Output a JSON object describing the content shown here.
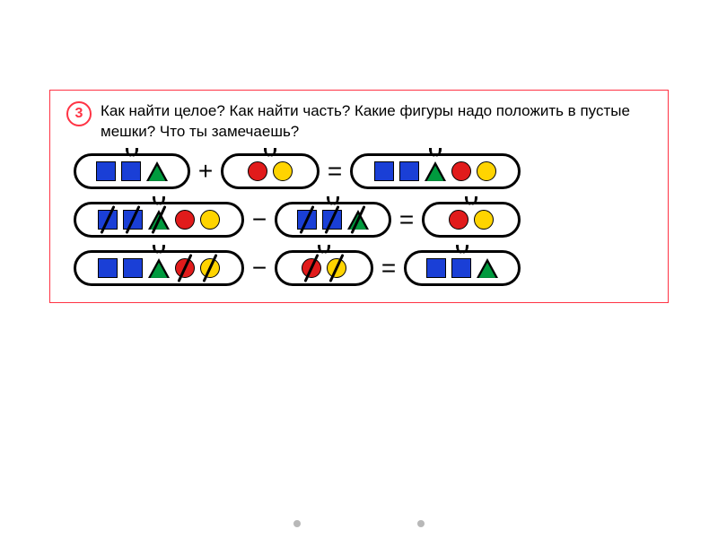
{
  "question_number": "3",
  "question_text": "Как найти целое? Как найти часть? Какие фигуры надо положить в пустые мешки? Что ты замечаешь?",
  "colors": {
    "blue": "#1a3fd6",
    "green": "#009a3e",
    "red": "#e11b1b",
    "yellow": "#ffd400",
    "border": "#ff3344",
    "black": "#000000"
  },
  "layout": {
    "bag_widths": {
      "w3": 130,
      "w2": 110,
      "w5": 190
    }
  },
  "shapes": {
    "square": "square",
    "triangle": "triangle",
    "circle": "circle"
  },
  "rows": [
    {
      "left": {
        "size": "w3",
        "items": [
          {
            "shape": "square",
            "color": "blue"
          },
          {
            "shape": "square",
            "color": "blue"
          },
          {
            "shape": "triangle",
            "color": "green"
          }
        ]
      },
      "op1": "+",
      "mid": {
        "size": "w2",
        "items": [
          {
            "shape": "circle",
            "color": "red"
          },
          {
            "shape": "circle",
            "color": "yellow"
          }
        ]
      },
      "op2": "=",
      "right": {
        "size": "w5",
        "items": [
          {
            "shape": "square",
            "color": "blue"
          },
          {
            "shape": "square",
            "color": "blue"
          },
          {
            "shape": "triangle",
            "color": "green"
          },
          {
            "shape": "circle",
            "color": "red"
          },
          {
            "shape": "circle",
            "color": "yellow"
          }
        ]
      }
    },
    {
      "left": {
        "size": "w5",
        "items": [
          {
            "shape": "square",
            "color": "blue",
            "strike": true
          },
          {
            "shape": "square",
            "color": "blue",
            "strike": true
          },
          {
            "shape": "triangle",
            "color": "green",
            "strike": true
          },
          {
            "shape": "circle",
            "color": "red"
          },
          {
            "shape": "circle",
            "color": "yellow"
          }
        ]
      },
      "op1": "−",
      "mid": {
        "size": "w3",
        "items": [
          {
            "shape": "square",
            "color": "blue",
            "strike": true
          },
          {
            "shape": "square",
            "color": "blue",
            "strike": true
          },
          {
            "shape": "triangle",
            "color": "green",
            "strike": true
          }
        ]
      },
      "op2": "=",
      "right": {
        "size": "w2",
        "items": [
          {
            "shape": "circle",
            "color": "red"
          },
          {
            "shape": "circle",
            "color": "yellow"
          }
        ]
      }
    },
    {
      "left": {
        "size": "w5",
        "items": [
          {
            "shape": "square",
            "color": "blue"
          },
          {
            "shape": "square",
            "color": "blue"
          },
          {
            "shape": "triangle",
            "color": "green"
          },
          {
            "shape": "circle",
            "color": "red",
            "strike": true
          },
          {
            "shape": "circle",
            "color": "yellow",
            "strike": true
          }
        ]
      },
      "op1": "−",
      "mid": {
        "size": "w2",
        "items": [
          {
            "shape": "circle",
            "color": "red",
            "strike": true
          },
          {
            "shape": "circle",
            "color": "yellow",
            "strike": true
          }
        ]
      },
      "op2": "=",
      "right": {
        "size": "w3",
        "items": [
          {
            "shape": "square",
            "color": "blue"
          },
          {
            "shape": "square",
            "color": "blue"
          },
          {
            "shape": "triangle",
            "color": "green"
          }
        ]
      }
    }
  ]
}
